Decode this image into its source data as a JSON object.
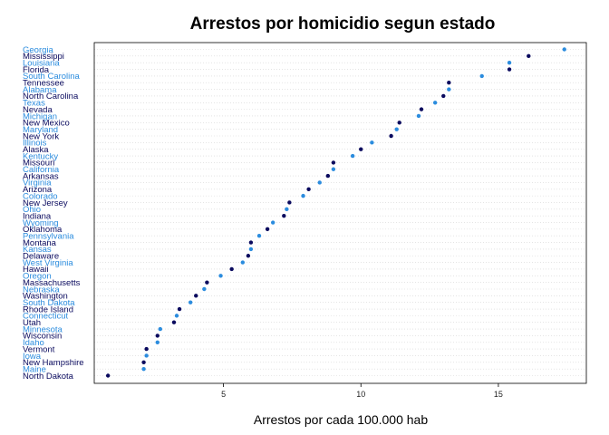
{
  "chart_data": {
    "type": "scatter",
    "title": "Arrestos por homicidio segun estado",
    "xlabel": "Arrestos por cada 100.000 hab",
    "ylabel": "",
    "xlim": [
      0.3,
      18.2
    ],
    "xticks": [
      5,
      10,
      15
    ],
    "grid": "horizontal dotted lines per state",
    "colors": {
      "dark": "#0a0a5e",
      "light": "#2b8cde"
    },
    "points": [
      {
        "state": "Georgia",
        "value": 17.4,
        "color": "light"
      },
      {
        "state": "Mississippi",
        "value": 16.1,
        "color": "dark"
      },
      {
        "state": "Louisiana",
        "value": 15.4,
        "color": "light"
      },
      {
        "state": "Florida",
        "value": 15.4,
        "color": "dark"
      },
      {
        "state": "South Carolina",
        "value": 14.4,
        "color": "light"
      },
      {
        "state": "Tennessee",
        "value": 13.2,
        "color": "dark"
      },
      {
        "state": "Alabama",
        "value": 13.2,
        "color": "light"
      },
      {
        "state": "North Carolina",
        "value": 13.0,
        "color": "dark"
      },
      {
        "state": "Texas",
        "value": 12.7,
        "color": "light"
      },
      {
        "state": "Nevada",
        "value": 12.2,
        "color": "dark"
      },
      {
        "state": "Michigan",
        "value": 12.1,
        "color": "light"
      },
      {
        "state": "New Mexico",
        "value": 11.4,
        "color": "dark"
      },
      {
        "state": "Maryland",
        "value": 11.3,
        "color": "light"
      },
      {
        "state": "New York",
        "value": 11.1,
        "color": "dark"
      },
      {
        "state": "Illinois",
        "value": 10.4,
        "color": "light"
      },
      {
        "state": "Alaska",
        "value": 10.0,
        "color": "dark"
      },
      {
        "state": "Kentucky",
        "value": 9.7,
        "color": "light"
      },
      {
        "state": "Missouri",
        "value": 9.0,
        "color": "dark"
      },
      {
        "state": "California",
        "value": 9.0,
        "color": "light"
      },
      {
        "state": "Arkansas",
        "value": 8.8,
        "color": "dark"
      },
      {
        "state": "Virginia",
        "value": 8.5,
        "color": "light"
      },
      {
        "state": "Arizona",
        "value": 8.1,
        "color": "dark"
      },
      {
        "state": "Colorado",
        "value": 7.9,
        "color": "light"
      },
      {
        "state": "New Jersey",
        "value": 7.4,
        "color": "dark"
      },
      {
        "state": "Ohio",
        "value": 7.3,
        "color": "light"
      },
      {
        "state": "Indiana",
        "value": 7.2,
        "color": "dark"
      },
      {
        "state": "Wyoming",
        "value": 6.8,
        "color": "light"
      },
      {
        "state": "Oklahoma",
        "value": 6.6,
        "color": "dark"
      },
      {
        "state": "Pennsylvania",
        "value": 6.3,
        "color": "light"
      },
      {
        "state": "Montana",
        "value": 6.0,
        "color": "dark"
      },
      {
        "state": "Kansas",
        "value": 6.0,
        "color": "light"
      },
      {
        "state": "Delaware",
        "value": 5.9,
        "color": "dark"
      },
      {
        "state": "West Virginia",
        "value": 5.7,
        "color": "light"
      },
      {
        "state": "Hawaii",
        "value": 5.3,
        "color": "dark"
      },
      {
        "state": "Oregon",
        "value": 4.9,
        "color": "light"
      },
      {
        "state": "Massachusetts",
        "value": 4.4,
        "color": "dark"
      },
      {
        "state": "Nebraska",
        "value": 4.3,
        "color": "light"
      },
      {
        "state": "Washington",
        "value": 4.0,
        "color": "dark"
      },
      {
        "state": "South Dakota",
        "value": 3.8,
        "color": "light"
      },
      {
        "state": "Rhode Island",
        "value": 3.4,
        "color": "dark"
      },
      {
        "state": "Connecticut",
        "value": 3.3,
        "color": "light"
      },
      {
        "state": "Utah",
        "value": 3.2,
        "color": "dark"
      },
      {
        "state": "Minnesota",
        "value": 2.7,
        "color": "light"
      },
      {
        "state": "Wisconsin",
        "value": 2.6,
        "color": "dark"
      },
      {
        "state": "Idaho",
        "value": 2.6,
        "color": "light"
      },
      {
        "state": "Vermont",
        "value": 2.2,
        "color": "dark"
      },
      {
        "state": "Iowa",
        "value": 2.2,
        "color": "light"
      },
      {
        "state": "New Hampshire",
        "value": 2.1,
        "color": "dark"
      },
      {
        "state": "Maine",
        "value": 2.1,
        "color": "light"
      },
      {
        "state": "North Dakota",
        "value": 0.8,
        "color": "dark"
      }
    ]
  }
}
